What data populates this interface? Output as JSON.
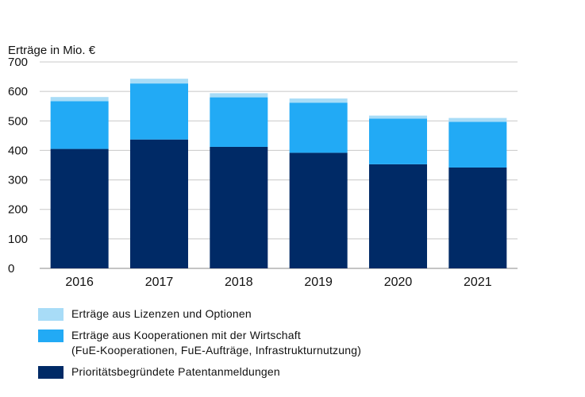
{
  "chart_data": {
    "type": "bar",
    "stacked": true,
    "ylabel": "Erträge in Mio. €",
    "ylim": [
      0,
      700
    ],
    "yticks": [
      0,
      100,
      200,
      300,
      400,
      500,
      600,
      700
    ],
    "grid": true,
    "legend_position": "bottom",
    "categories": [
      "2016",
      "2017",
      "2018",
      "2019",
      "2020",
      "2021"
    ],
    "series": [
      {
        "name": "Prioritätsbegründete Patentanmeldungen",
        "color": "#002a66",
        "values": [
          405,
          437,
          412,
          392,
          353,
          342
        ]
      },
      {
        "name": "Erträge aus Kooperationen mit der Wirtschaft\n(FuE-Kooperationen, FuE-Aufträge, Infrastrukturnutzung)",
        "color": "#22aaf5",
        "values": [
          162,
          190,
          168,
          170,
          155,
          155
        ]
      },
      {
        "name": "Erträge aus Lizenzen und Optionen",
        "color": "#a8dcf7",
        "values": [
          14,
          16,
          14,
          14,
          10,
          13
        ]
      }
    ]
  },
  "legend": [
    {
      "label": "Erträge aus Lizenzen und Optionen",
      "color": "#a8dcf7"
    },
    {
      "label": "Erträge aus Kooperationen mit der Wirtschaft\n(FuE-Kooperationen, FuE-Aufträge, Infrastrukturnutzung)",
      "color": "#22aaf5"
    },
    {
      "label": "Prioritätsbegründete Patentanmeldungen",
      "color": "#002a66"
    }
  ]
}
